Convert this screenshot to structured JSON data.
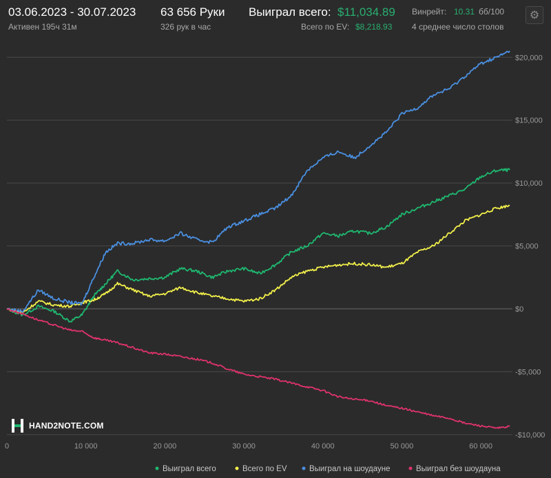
{
  "header": {
    "date_range": "03.06.2023 - 30.07.2023",
    "active_time": "Активен 195ч 31м",
    "hands_count": "63 656 Руки",
    "hands_per_hour": "326 рук в час",
    "won_total_label": "Выиграл всего:",
    "won_total_value": "$11,034.89",
    "ev_label": "Всего по EV:",
    "ev_value": "$8,218.93",
    "winrate_label": "Винрейт:",
    "winrate_value": "10.31",
    "winrate_unit": "бб/100",
    "tables_avg": "4 среднее число столов"
  },
  "settings_icon": "gear-icon",
  "logo": {
    "text": "HAND2NOTE.COM",
    "icon": "h2n-logo-icon"
  },
  "colors": {
    "won_total": "#1fb870",
    "ev": "#f2f04a",
    "showdown": "#4a90e2",
    "non_showdown": "#e0336b",
    "background": "#2b2b2b"
  },
  "chart_data": {
    "type": "line",
    "title": "",
    "xlabel": "",
    "ylabel": "",
    "xlim": [
      0,
      64000
    ],
    "ylim": [
      -10500,
      21000
    ],
    "x_ticks": [
      0,
      10000,
      20000,
      30000,
      40000,
      50000,
      60000
    ],
    "x_tick_labels": [
      "0",
      "10 000",
      "20 000",
      "30 000",
      "40 000",
      "50 000",
      "60 000"
    ],
    "y_ticks": [
      20000,
      15000,
      10000,
      5000,
      0,
      -5000,
      -10000
    ],
    "y_tick_labels": [
      "$20,000",
      "$15,000",
      "$10,000",
      "$5,000",
      "$0",
      "-$5,000",
      "-$10,000"
    ],
    "grid": true,
    "legend_position": "bottom-right",
    "series": [
      {
        "name": "Выиграл всего",
        "color": "#1fb870",
        "x": [
          0,
          2000,
          4000,
          6000,
          8000,
          9500,
          11000,
          12500,
          14000,
          16000,
          18000,
          20000,
          22000,
          24000,
          26000,
          28000,
          30000,
          32000,
          34000,
          36000,
          38000,
          40000,
          42000,
          44000,
          46000,
          48000,
          50000,
          52000,
          54000,
          56000,
          58000,
          60000,
          62000,
          63656
        ],
        "y": [
          0,
          -500,
          200,
          -200,
          -1000,
          -500,
          1000,
          2000,
          3000,
          2300,
          2400,
          2500,
          3200,
          3000,
          2500,
          3000,
          3200,
          2800,
          3500,
          4500,
          5000,
          6000,
          5800,
          6200,
          6000,
          6500,
          7500,
          8000,
          8500,
          9000,
          9500,
          10500,
          11000,
          11035
        ]
      },
      {
        "name": "Всего по EV",
        "color": "#f2f04a",
        "x": [
          0,
          2000,
          4000,
          6000,
          8000,
          9500,
          11000,
          12500,
          14000,
          16000,
          18000,
          20000,
          22000,
          24000,
          26000,
          28000,
          30000,
          32000,
          34000,
          36000,
          38000,
          40000,
          42000,
          44000,
          46000,
          48000,
          50000,
          52000,
          54000,
          56000,
          58000,
          60000,
          62000,
          63656
        ],
        "y": [
          0,
          -300,
          600,
          300,
          200,
          500,
          700,
          1200,
          2000,
          1500,
          1000,
          1200,
          1700,
          1300,
          1000,
          800,
          600,
          800,
          1500,
          2500,
          3000,
          3300,
          3500,
          3600,
          3500,
          3300,
          3600,
          4500,
          5000,
          6000,
          7000,
          7500,
          8000,
          8219
        ]
      },
      {
        "name": "Выиграл на шоудауне",
        "color": "#4a90e2",
        "x": [
          0,
          2000,
          4000,
          6000,
          8000,
          9500,
          11000,
          12500,
          14000,
          16000,
          18000,
          20000,
          22000,
          24000,
          26000,
          28000,
          30000,
          32000,
          34000,
          36000,
          38000,
          40000,
          42000,
          44000,
          46000,
          48000,
          50000,
          52000,
          54000,
          56000,
          58000,
          60000,
          62000,
          63656
        ],
        "y": [
          0,
          -200,
          1500,
          800,
          500,
          400,
          2500,
          4500,
          5200,
          5200,
          5500,
          5400,
          6000,
          5500,
          5300,
          6500,
          7000,
          7500,
          8000,
          9000,
          11000,
          12000,
          12500,
          12000,
          13000,
          14000,
          15500,
          16000,
          17000,
          17500,
          18500,
          19500,
          20000,
          20500
        ]
      },
      {
        "name": "Выиграл без шоудауна",
        "color": "#e0336b",
        "x": [
          0,
          2000,
          4000,
          6000,
          8000,
          9500,
          11000,
          12500,
          14000,
          16000,
          18000,
          20000,
          22000,
          24000,
          26000,
          28000,
          30000,
          32000,
          34000,
          36000,
          38000,
          40000,
          42000,
          44000,
          46000,
          48000,
          50000,
          52000,
          54000,
          56000,
          58000,
          60000,
          62000,
          63656
        ],
        "y": [
          0,
          -400,
          -900,
          -1300,
          -1700,
          -1800,
          -2300,
          -2500,
          -2700,
          -3100,
          -3500,
          -3600,
          -3800,
          -4000,
          -4300,
          -4800,
          -5200,
          -5400,
          -5600,
          -5900,
          -6200,
          -6500,
          -7000,
          -7200,
          -7300,
          -7700,
          -7900,
          -8200,
          -8500,
          -8700,
          -9100,
          -9300,
          -9500,
          -9350
        ]
      }
    ]
  }
}
